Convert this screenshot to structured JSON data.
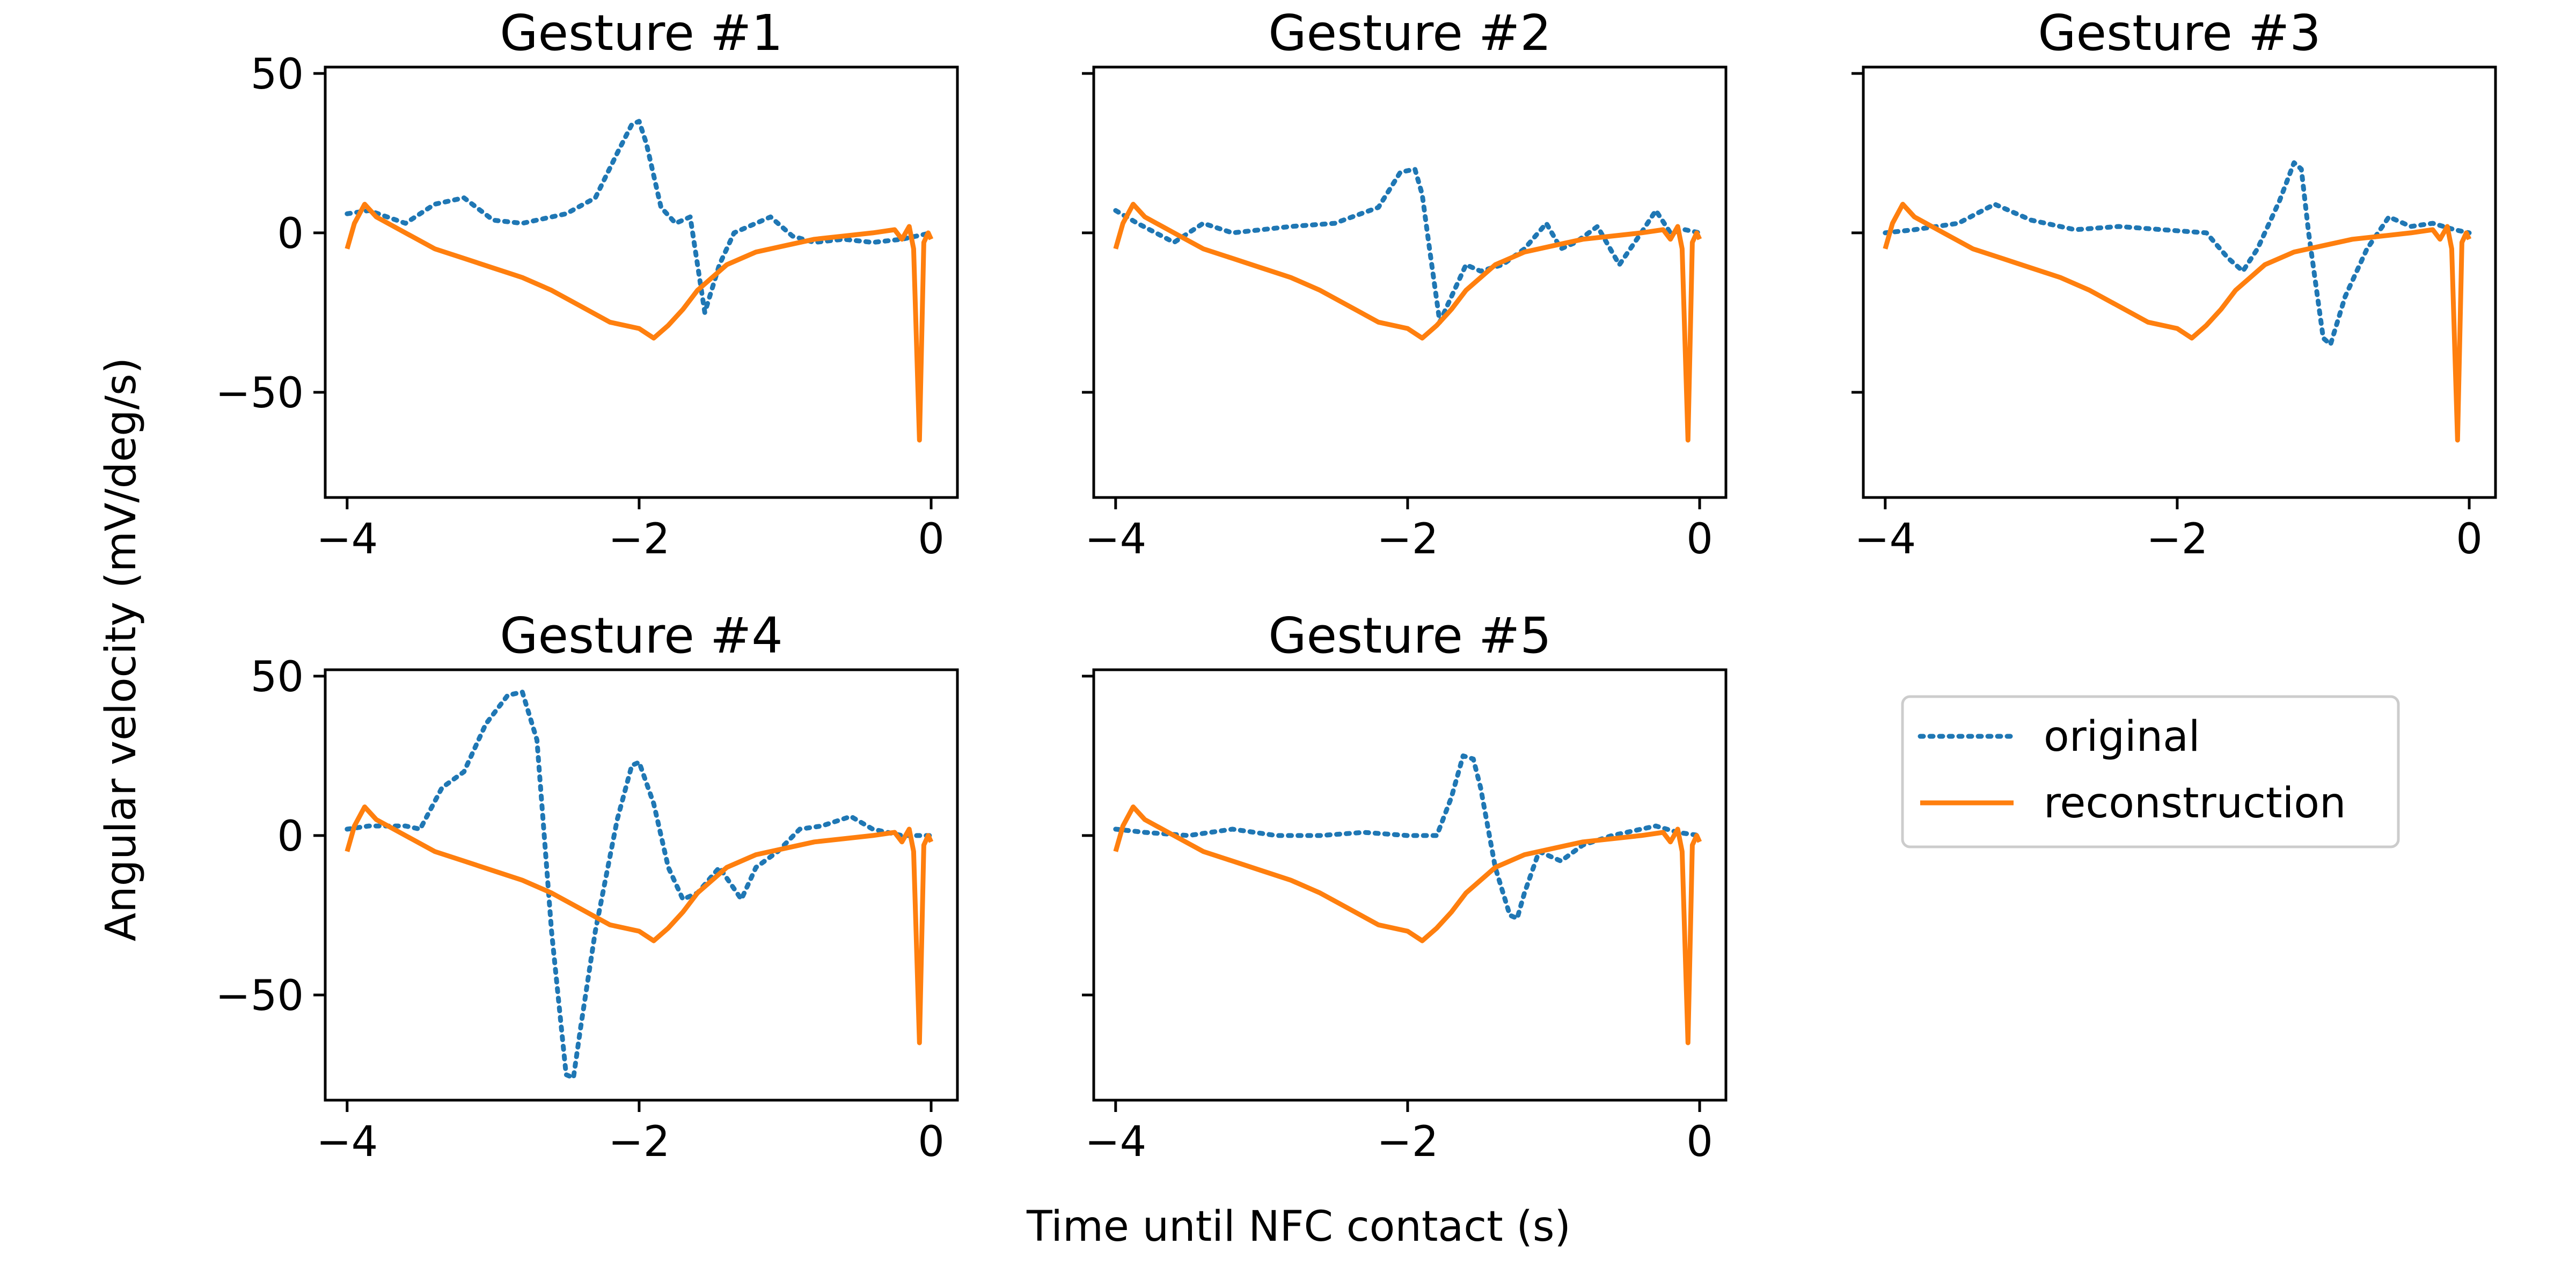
{
  "figure": {
    "xlabel": "Time until NFC contact (s)",
    "ylabel": "Angular velocity (mV/deg/s)"
  },
  "legend": {
    "position": "right, beside Gesture #5",
    "entries": [
      {
        "label": "original",
        "color": "#1f77b4",
        "style": "dotted"
      },
      {
        "label": "reconstruction",
        "color": "#ff7f0e",
        "style": "solid"
      }
    ]
  },
  "chart_data": [
    {
      "type": "line",
      "title": "Gesture #1",
      "xlim": [
        -4.15,
        0.18
      ],
      "ylim": [
        -83,
        52
      ],
      "xticks": [
        -4,
        -2,
        0
      ],
      "yticks": [
        50,
        0,
        -50
      ],
      "xtick_labels": [
        "−4",
        "−2",
        "0"
      ],
      "ytick_labels": [
        "50",
        "0",
        "−50"
      ],
      "show_yticklabels": true,
      "series": [
        {
          "name": "original",
          "color": "#1f77b4",
          "style": "dotted",
          "x": [
            -4,
            -3.85,
            -3.6,
            -3.4,
            -3.2,
            -3,
            -2.8,
            -2.5,
            -2.3,
            -2.15,
            -2.05,
            -2,
            -1.95,
            -1.85,
            -1.75,
            -1.65,
            -1.55,
            -1.45,
            -1.35,
            -1.25,
            -1.1,
            -0.95,
            -0.8,
            -0.6,
            -0.4,
            -0.2,
            -0.1,
            0
          ],
          "y": [
            6,
            7,
            3,
            9,
            11,
            4,
            3,
            6,
            11,
            25,
            34,
            35,
            28,
            8,
            3,
            5,
            -25,
            -10,
            0,
            2,
            5,
            -1,
            -3,
            -2,
            -3,
            -2,
            -1,
            0
          ]
        },
        {
          "name": "reconstruction",
          "color": "#ff7f0e",
          "style": "solid",
          "x": [
            -4,
            -3.95,
            -3.88,
            -3.8,
            -3.6,
            -3.4,
            -3.2,
            -3,
            -2.8,
            -2.6,
            -2.4,
            -2.2,
            -2,
            -1.9,
            -1.8,
            -1.7,
            -1.6,
            -1.4,
            -1.2,
            -1,
            -0.8,
            -0.6,
            -0.4,
            -0.25,
            -0.2,
            -0.15,
            -0.12,
            -0.08,
            -0.05,
            -0.02,
            0
          ],
          "y": [
            -5,
            3,
            9,
            5,
            0,
            -5,
            -8,
            -11,
            -14,
            -18,
            -23,
            -28,
            -30,
            -33,
            -29,
            -24,
            -18,
            -10,
            -6,
            -4,
            -2,
            -1,
            0,
            1,
            -2,
            2,
            -5,
            -65,
            -3,
            0,
            -2
          ]
        }
      ]
    },
    {
      "type": "line",
      "title": "Gesture #2",
      "xlim": [
        -4.15,
        0.18
      ],
      "ylim": [
        -83,
        52
      ],
      "xticks": [
        -4,
        -2,
        0
      ],
      "yticks": [
        50,
        0,
        -50
      ],
      "xtick_labels": [
        "−4",
        "−2",
        "0"
      ],
      "ytick_labels": [
        "50",
        "0",
        "−50"
      ],
      "show_yticklabels": false,
      "series": [
        {
          "name": "original",
          "color": "#1f77b4",
          "style": "dotted",
          "x": [
            -4,
            -3.85,
            -3.6,
            -3.4,
            -3.2,
            -3,
            -2.8,
            -2.5,
            -2.2,
            -2.05,
            -1.95,
            -1.9,
            -1.85,
            -1.78,
            -1.7,
            -1.6,
            -1.5,
            -1.35,
            -1.2,
            -1.05,
            -0.95,
            -0.85,
            -0.7,
            -0.55,
            -0.4,
            -0.3,
            -0.2,
            -0.1,
            0
          ],
          "y": [
            7,
            3,
            -3,
            3,
            0,
            1,
            2,
            3,
            8,
            19,
            20,
            12,
            -5,
            -28,
            -20,
            -10,
            -12,
            -10,
            -5,
            3,
            -5,
            -3,
            2,
            -10,
            0,
            7,
            0,
            1,
            0
          ]
        },
        {
          "name": "reconstruction",
          "color": "#ff7f0e",
          "style": "solid",
          "x": [
            -4,
            -3.95,
            -3.88,
            -3.8,
            -3.6,
            -3.4,
            -3.2,
            -3,
            -2.8,
            -2.6,
            -2.4,
            -2.2,
            -2,
            -1.9,
            -1.8,
            -1.7,
            -1.6,
            -1.4,
            -1.2,
            -1,
            -0.8,
            -0.6,
            -0.4,
            -0.25,
            -0.2,
            -0.15,
            -0.12,
            -0.08,
            -0.05,
            -0.02,
            0
          ],
          "y": [
            -5,
            3,
            9,
            5,
            0,
            -5,
            -8,
            -11,
            -14,
            -18,
            -23,
            -28,
            -30,
            -33,
            -29,
            -24,
            -18,
            -10,
            -6,
            -4,
            -2,
            -1,
            0,
            1,
            -2,
            2,
            -5,
            -65,
            -3,
            0,
            -2
          ]
        }
      ]
    },
    {
      "type": "line",
      "title": "Gesture #3",
      "xlim": [
        -4.15,
        0.18
      ],
      "ylim": [
        -83,
        52
      ],
      "xticks": [
        -4,
        -2,
        0
      ],
      "yticks": [
        50,
        0,
        -50
      ],
      "xtick_labels": [
        "−4",
        "−2",
        "0"
      ],
      "ytick_labels": [
        "50",
        "0",
        "−50"
      ],
      "show_yticklabels": false,
      "series": [
        {
          "name": "original",
          "color": "#1f77b4",
          "style": "dotted",
          "x": [
            -4,
            -3.8,
            -3.5,
            -3.25,
            -3,
            -2.7,
            -2.4,
            -2.1,
            -1.8,
            -1.65,
            -1.55,
            -1.45,
            -1.3,
            -1.2,
            -1.15,
            -1.1,
            -1,
            -0.95,
            -0.85,
            -0.7,
            -0.55,
            -0.4,
            -0.25,
            -0.1,
            0
          ],
          "y": [
            0,
            1,
            3,
            9,
            4,
            1,
            2,
            1,
            0,
            -8,
            -12,
            -5,
            10,
            22,
            20,
            0,
            -33,
            -35,
            -20,
            -5,
            5,
            2,
            3,
            1,
            0
          ]
        },
        {
          "name": "reconstruction",
          "color": "#ff7f0e",
          "style": "solid",
          "x": [
            -4,
            -3.95,
            -3.88,
            -3.8,
            -3.6,
            -3.4,
            -3.2,
            -3,
            -2.8,
            -2.6,
            -2.4,
            -2.2,
            -2,
            -1.9,
            -1.8,
            -1.7,
            -1.6,
            -1.4,
            -1.2,
            -1,
            -0.8,
            -0.6,
            -0.4,
            -0.25,
            -0.2,
            -0.15,
            -0.12,
            -0.08,
            -0.05,
            -0.02,
            0
          ],
          "y": [
            -5,
            3,
            9,
            5,
            0,
            -5,
            -8,
            -11,
            -14,
            -18,
            -23,
            -28,
            -30,
            -33,
            -29,
            -24,
            -18,
            -10,
            -6,
            -4,
            -2,
            -1,
            0,
            1,
            -2,
            2,
            -5,
            -65,
            -3,
            0,
            -2
          ]
        }
      ]
    },
    {
      "type": "line",
      "title": "Gesture #4",
      "xlim": [
        -4.15,
        0.18
      ],
      "ylim": [
        -83,
        52
      ],
      "xticks": [
        -4,
        -2,
        0
      ],
      "yticks": [
        50,
        0,
        -50
      ],
      "xtick_labels": [
        "−4",
        "−2",
        "0"
      ],
      "ytick_labels": [
        "50",
        "0",
        "−50"
      ],
      "show_yticklabels": true,
      "series": [
        {
          "name": "original",
          "color": "#1f77b4",
          "style": "dotted",
          "x": [
            -4,
            -3.85,
            -3.6,
            -3.5,
            -3.35,
            -3.2,
            -3.05,
            -2.9,
            -2.8,
            -2.7,
            -2.6,
            -2.5,
            -2.45,
            -2.4,
            -2.3,
            -2.15,
            -2.05,
            -2,
            -1.9,
            -1.8,
            -1.7,
            -1.6,
            -1.45,
            -1.3,
            -1.2,
            -1.05,
            -0.9,
            -0.75,
            -0.55,
            -0.4,
            -0.2,
            0
          ],
          "y": [
            2,
            3,
            3,
            2,
            15,
            20,
            35,
            44,
            45,
            30,
            -30,
            -75,
            -76,
            -60,
            -30,
            5,
            22,
            23,
            10,
            -10,
            -20,
            -18,
            -10,
            -20,
            -10,
            -5,
            2,
            3,
            6,
            2,
            0,
            0
          ]
        },
        {
          "name": "reconstruction",
          "color": "#ff7f0e",
          "style": "solid",
          "x": [
            -4,
            -3.95,
            -3.88,
            -3.8,
            -3.6,
            -3.4,
            -3.2,
            -3,
            -2.8,
            -2.6,
            -2.4,
            -2.2,
            -2,
            -1.9,
            -1.8,
            -1.7,
            -1.6,
            -1.4,
            -1.2,
            -1,
            -0.8,
            -0.6,
            -0.4,
            -0.25,
            -0.2,
            -0.15,
            -0.12,
            -0.08,
            -0.05,
            -0.02,
            0
          ],
          "y": [
            -5,
            3,
            9,
            5,
            0,
            -5,
            -8,
            -11,
            -14,
            -18,
            -23,
            -28,
            -30,
            -33,
            -29,
            -24,
            -18,
            -10,
            -6,
            -4,
            -2,
            -1,
            0,
            1,
            -2,
            2,
            -5,
            -65,
            -3,
            0,
            -2
          ]
        }
      ]
    },
    {
      "type": "line",
      "title": "Gesture #5",
      "xlim": [
        -4.15,
        0.18
      ],
      "ylim": [
        -83,
        52
      ],
      "xticks": [
        -4,
        -2,
        0
      ],
      "yticks": [
        50,
        0,
        -50
      ],
      "xtick_labels": [
        "−4",
        "−2",
        "0"
      ],
      "ytick_labels": [
        "50",
        "0",
        "−50"
      ],
      "show_yticklabels": false,
      "series": [
        {
          "name": "original",
          "color": "#1f77b4",
          "style": "dotted",
          "x": [
            -4,
            -3.8,
            -3.5,
            -3.2,
            -2.9,
            -2.6,
            -2.3,
            -2,
            -1.8,
            -1.7,
            -1.62,
            -1.55,
            -1.5,
            -1.4,
            -1.3,
            -1.25,
            -1.2,
            -1.1,
            -0.95,
            -0.8,
            -0.6,
            -0.4,
            -0.3,
            -0.15,
            0
          ],
          "y": [
            2,
            1,
            0,
            2,
            0,
            0,
            1,
            0,
            0,
            12,
            25,
            24,
            15,
            -10,
            -25,
            -26,
            -18,
            -5,
            -8,
            -3,
            0,
            2,
            3,
            1,
            0
          ]
        },
        {
          "name": "reconstruction",
          "color": "#ff7f0e",
          "style": "solid",
          "x": [
            -4,
            -3.95,
            -3.88,
            -3.8,
            -3.6,
            -3.4,
            -3.2,
            -3,
            -2.8,
            -2.6,
            -2.4,
            -2.2,
            -2,
            -1.9,
            -1.8,
            -1.7,
            -1.6,
            -1.4,
            -1.2,
            -1,
            -0.8,
            -0.6,
            -0.4,
            -0.25,
            -0.2,
            -0.15,
            -0.12,
            -0.08,
            -0.05,
            -0.02,
            0
          ],
          "y": [
            -5,
            3,
            9,
            5,
            0,
            -5,
            -8,
            -11,
            -14,
            -18,
            -23,
            -28,
            -30,
            -33,
            -29,
            -24,
            -18,
            -10,
            -6,
            -4,
            -2,
            -1,
            0,
            1,
            -2,
            2,
            -5,
            -65,
            -3,
            0,
            -2
          ]
        }
      ]
    }
  ]
}
